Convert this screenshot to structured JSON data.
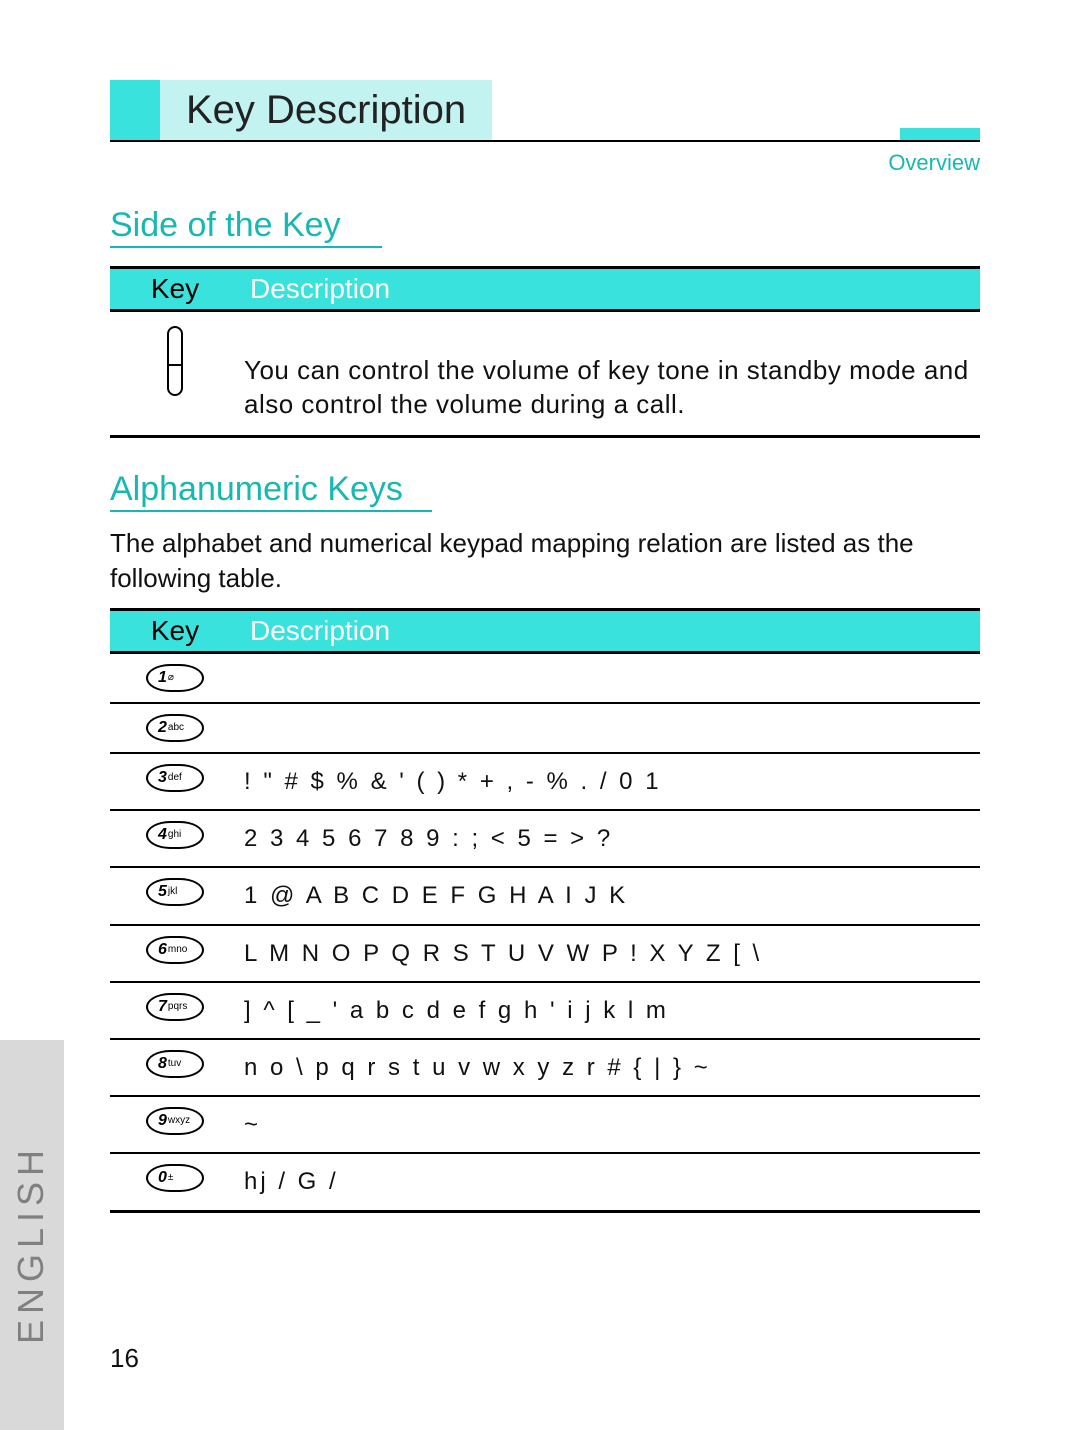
{
  "colors": {
    "accent_strong": "#39e2dc",
    "accent_light": "#c2f3f1",
    "cyan_text": "#18b8b2",
    "page_bg": "#ffffff",
    "text": "#111111",
    "rule": "#000000",
    "side_tab_bg": "#d9d9d9",
    "side_tab_text": "#808080"
  },
  "header": {
    "title": "Key Description",
    "breadcrumb": "Overview"
  },
  "section1": {
    "heading": "Side of the Key",
    "table": {
      "columns": [
        "Key",
        "Description"
      ],
      "row": {
        "subtitle": "Up/Down Side Key",
        "body": "You can control the volume of key tone in standby mode and also control the volume during a call."
      }
    }
  },
  "section2": {
    "heading": "Alphanumeric Keys",
    "intro": "The alphabet and numerical keypad mapping relation are listed as the following table.",
    "table": {
      "columns": [
        "Key",
        "Description"
      ],
      "rows": [
        {
          "key_main": "1",
          "key_sub": "⌀",
          "desc": ""
        },
        {
          "key_main": "2",
          "key_sub": "abc",
          "desc": ""
        },
        {
          "key_main": "3",
          "key_sub": "def",
          "desc": "! \" # $ % & ' ( ) * + , - %   . / 0 1"
        },
        {
          "key_main": "4",
          "key_sub": "ghi",
          "desc": "2 3   4 5 6 7 8 9 : ; < 5 = > ?"
        },
        {
          "key_main": "5",
          "key_sub": "jkl",
          "desc": "1 @ A B C D E F G H A I J K"
        },
        {
          "key_main": "6",
          "key_sub": "mno",
          "desc": "L M N O P Q R S T U V W P   ! X Y Z [ \\"
        },
        {
          "key_main": "7",
          "key_sub": "pqrs",
          "desc": "] ^ [ _ ' a b c d e f g h ' i j k l m"
        },
        {
          "key_main": "8",
          "key_sub": "tuv",
          "desc": "n o \\ p q r s t u v w x y z r # { | } ~"
        },
        {
          "key_main": "9",
          "key_sub": "wxyz",
          "desc": "   ~"
        },
        {
          "key_main": "0",
          "key_sub": "±",
          "desc": "hj   / G /"
        }
      ]
    }
  },
  "side_label": "ENGLISH",
  "page_number": "16"
}
